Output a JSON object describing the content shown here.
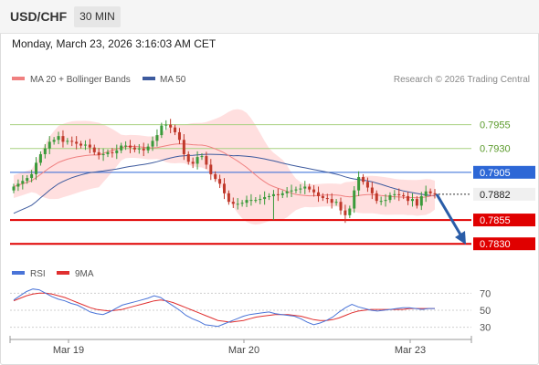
{
  "header": {
    "symbol": "USD/CHF",
    "timeframe": "30 MIN"
  },
  "datetime": "Monday, March 23, 2026 3:16:03 AM CET",
  "legend": {
    "bb": "MA 20 + Bollinger Bands",
    "ma50": "MA 50",
    "credit": "Research © 2026 Trading Central"
  },
  "rsi_legend": {
    "rsi": "RSI",
    "ma": "9MA"
  },
  "colors": {
    "bullish": "#3a9a3a",
    "bearish": "#c0392b",
    "ma20": "#f08080",
    "band_fill": "#ffd4d4",
    "ma50": "#3d5a9e",
    "support": "#e00000",
    "resistance_minor": "#a8d080",
    "pivot": "#2d67d6",
    "last": "#222222",
    "arrow": "#2a5da8",
    "rsi": "#4a74d8",
    "rsi_ma": "#e03030"
  },
  "chart_data": [
    {
      "type": "candlestick",
      "title": "USD/CHF 30 MIN",
      "x_ticks": [
        "Mar 19",
        "Mar 20",
        "Mar 23"
      ],
      "ylim": [
        0.7812,
        0.799
      ],
      "levels": [
        {
          "value": 0.7955,
          "label": "0.7955",
          "kind": "resistance"
        },
        {
          "value": 0.793,
          "label": "0.7930",
          "kind": "resistance"
        },
        {
          "value": 0.7905,
          "label": "0.7905",
          "kind": "pivot"
        },
        {
          "value": 0.7882,
          "label": "0.7882",
          "kind": "last"
        },
        {
          "value": 0.7855,
          "label": "0.7855",
          "kind": "support"
        },
        {
          "value": 0.783,
          "label": "0.7830",
          "kind": "support"
        }
      ],
      "close": [
        0.789,
        0.7893,
        0.7896,
        0.7899,
        0.7903,
        0.7915,
        0.7924,
        0.793,
        0.7937,
        0.7939,
        0.7943,
        0.7937,
        0.7938,
        0.7937,
        0.7935,
        0.7933,
        0.7934,
        0.7931,
        0.7926,
        0.7923,
        0.7924,
        0.7926,
        0.7925,
        0.7928,
        0.7933,
        0.7933,
        0.7931,
        0.7929,
        0.793,
        0.7928,
        0.7932,
        0.7938,
        0.7944,
        0.7954,
        0.7955,
        0.7952,
        0.7947,
        0.7939,
        0.7924,
        0.7916,
        0.7914,
        0.7921,
        0.7922,
        0.7913,
        0.7903,
        0.7898,
        0.7893,
        0.7883,
        0.7874,
        0.7872,
        0.7872,
        0.7873,
        0.7876,
        0.7876,
        0.7876,
        0.7877,
        0.7879,
        0.788,
        0.7882,
        0.7881,
        0.7883,
        0.7885,
        0.7886,
        0.7887,
        0.7888,
        0.789,
        0.7887,
        0.7884,
        0.788,
        0.7878,
        0.7877,
        0.7873,
        0.7874,
        0.7865,
        0.786,
        0.7867,
        0.7886,
        0.79,
        0.7895,
        0.7889,
        0.7883,
        0.7875,
        0.7875,
        0.7876,
        0.7881,
        0.7882,
        0.7881,
        0.788,
        0.7875,
        0.7877,
        0.787,
        0.788,
        0.7885,
        0.7883,
        0.7882
      ]
    },
    {
      "type": "line",
      "title": "RSI",
      "ylim": [
        20,
        80
      ],
      "y_ticks": [
        70,
        50,
        30
      ],
      "series": [
        {
          "name": "RSI",
          "values": [
            62,
            67,
            72,
            75,
            74,
            70,
            66,
            63,
            61,
            58,
            56,
            52,
            48,
            46,
            45,
            48,
            52,
            56,
            58,
            60,
            62,
            64,
            67,
            65,
            60,
            55,
            50,
            44,
            40,
            37,
            33,
            32,
            31,
            34,
            37,
            40,
            43,
            45,
            46,
            47,
            48,
            46,
            45,
            44,
            43,
            40,
            36,
            33,
            35,
            38,
            42,
            48,
            53,
            57,
            54,
            52,
            50,
            49,
            50,
            51,
            52,
            53,
            53,
            52,
            51,
            52,
            52
          ]
        },
        {
          "name": "9MA",
          "values": [
            61,
            64,
            67,
            69,
            70,
            70,
            69,
            67,
            65,
            62,
            59,
            56,
            53,
            51,
            50,
            49,
            50,
            51,
            53,
            55,
            57,
            59,
            61,
            62,
            61,
            59,
            56,
            53,
            50,
            47,
            44,
            41,
            38,
            37,
            36,
            37,
            38,
            40,
            42,
            43,
            44,
            45,
            45,
            45,
            44,
            43,
            41,
            39,
            38,
            38,
            39,
            41,
            44,
            47,
            49,
            50,
            51,
            51,
            51,
            51,
            51,
            51,
            52,
            52,
            52,
            52,
            52
          ]
        }
      ]
    }
  ]
}
